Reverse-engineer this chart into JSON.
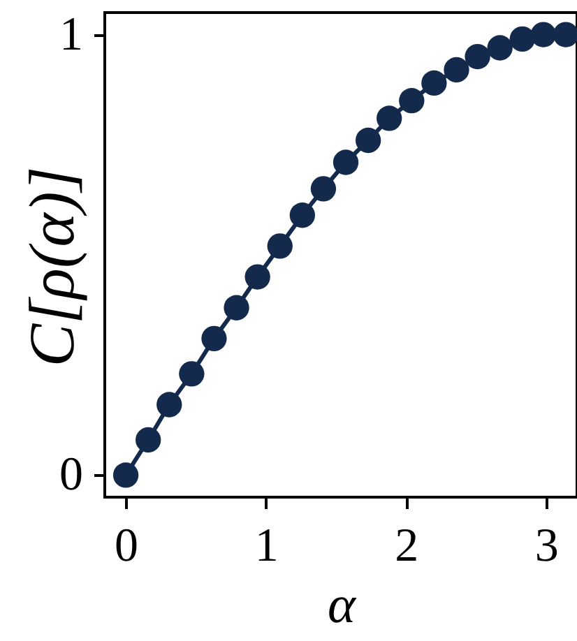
{
  "chart_data": {
    "type": "line",
    "xlabel": "α",
    "ylabel": "C[ρ(α)]",
    "x": [
      0,
      0.16,
      0.31,
      0.47,
      0.63,
      0.79,
      0.94,
      1.1,
      1.26,
      1.41,
      1.57,
      1.73,
      1.88,
      2.04,
      2.2,
      2.36,
      2.51,
      2.67,
      2.83,
      2.98,
      3.14
    ],
    "series": [
      {
        "color": "#142a4c",
        "values": [
          0,
          0.08,
          0.16,
          0.23,
          0.31,
          0.38,
          0.45,
          0.52,
          0.59,
          0.65,
          0.71,
          0.76,
          0.81,
          0.85,
          0.89,
          0.92,
          0.95,
          0.97,
          0.99,
          1.0,
          1.0
        ]
      }
    ],
    "marker": "circle",
    "line_style": "solid",
    "xlim": [
      -0.15,
      3.22
    ],
    "ylim": [
      -0.05,
      1.05
    ],
    "xticks": [
      0,
      1,
      2,
      3
    ],
    "yticks": [
      0,
      1
    ]
  }
}
